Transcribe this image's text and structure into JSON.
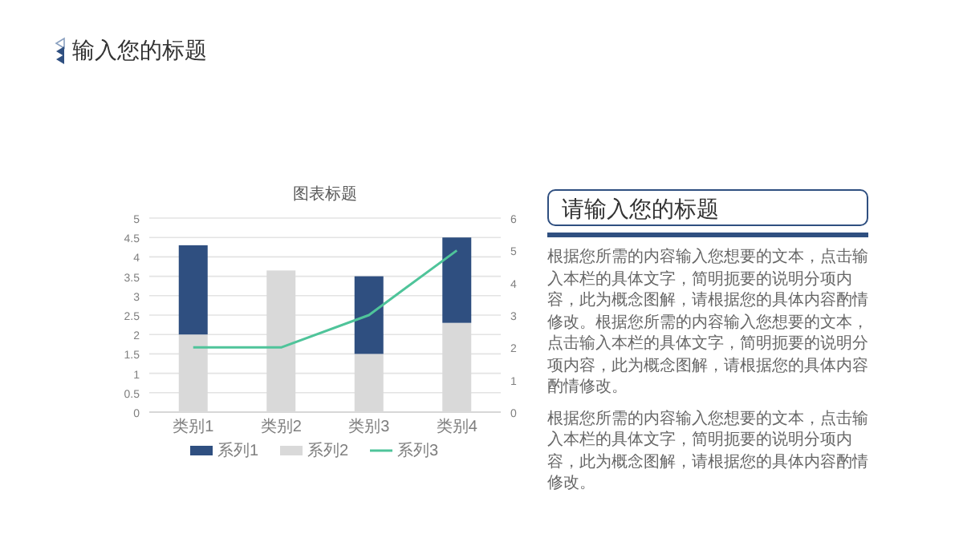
{
  "chart_data": [
    {
      "type": "other",
      "title": "输入您的标题"
    },
    {
      "type": "bar",
      "title": "图表标题",
      "categories": [
        "类别1",
        "类别2",
        "类别3",
        "类别4"
      ],
      "series": [
        {
          "name": "系列2",
          "color": "#d9d9d9",
          "values": [
            2,
            3.65,
            1.5,
            2.3
          ]
        },
        {
          "name": "系列1",
          "color": "#2f4f80",
          "values": [
            2.3,
            null,
            2,
            2.2
          ]
        },
        {
          "name": "系列3",
          "color": "#4fc49a",
          "type": "line",
          "axis": "y2",
          "values": [
            2,
            2,
            3,
            5
          ]
        }
      ],
      "ylim": [
        0,
        5
      ],
      "yticks": [
        0,
        0.5,
        1,
        1.5,
        2,
        2.5,
        3,
        3.5,
        4,
        4.5,
        5
      ],
      "y2lim": [
        0,
        6
      ],
      "y2ticks": [
        0,
        1,
        2,
        3,
        4,
        5,
        6
      ],
      "stacked": true,
      "grid": "y",
      "legend": "bottom",
      "marker": "none"
    },
    {
      "type": "other",
      "title": "请输入您的标题",
      "annotations": [
        "根据您所需的内容输入您想要的文本，点击输入本栏的具体文字，简明扼要的说明分项内容，此为概念图解，请根据您的具体内容酌情修改。根据您所需的内容输入您想要的文本，点击输入本栏的具体文字，简明扼要的说明分项内容，此为概念图解，请根据您的具体内容酌情修改。",
        "根据您所需的内容输入您想要的文本，点击输入本栏的具体文字，简明扼要的说明分项内容，此为概念图解，请根据您的具体内容酌情修改。"
      ]
    }
  ]
}
